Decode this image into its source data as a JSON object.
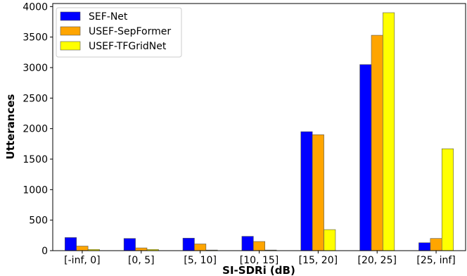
{
  "chart_data": {
    "type": "bar",
    "xlabel": "SI-SDRi (dB)",
    "ylabel": "Utterances",
    "categories": [
      "[-inf, 0]",
      "[0, 5]",
      "[5, 10]",
      "[10, 15]",
      "[15, 20]",
      "[20, 25]",
      "[25, inf]"
    ],
    "ylim": [
      0,
      4050
    ],
    "yticks": [
      0,
      500,
      1000,
      1500,
      2000,
      2500,
      3000,
      3500,
      4000
    ],
    "grid": false,
    "legend_position": "top-left",
    "series": [
      {
        "name": "SEF-Net",
        "color": "#0000ff",
        "values": [
          215,
          200,
          205,
          235,
          1950,
          3050,
          130
        ]
      },
      {
        "name": "USEF-SepFormer",
        "color": "#ffa500",
        "values": [
          75,
          45,
          110,
          150,
          1900,
          3530,
          200
        ]
      },
      {
        "name": "USEF-TFGridNet",
        "color": "#ffff00",
        "values": [
          20,
          20,
          10,
          10,
          345,
          3900,
          1670
        ]
      }
    ]
  }
}
